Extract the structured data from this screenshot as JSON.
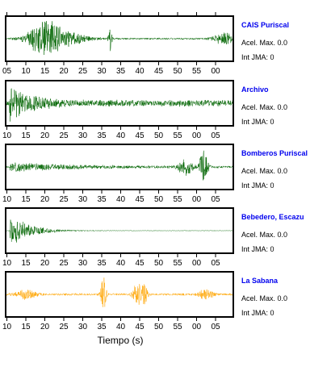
{
  "chart_data": {
    "type": "line",
    "xlabel": "Tiempo (s)",
    "ylabel": "",
    "grid": false,
    "legend": "none",
    "panels": [
      {
        "station": "CAIS Puriscal",
        "accel_label": "Acel. Max. 0.0",
        "int_label": "Int JMA: 0",
        "trace_color": "#006400",
        "x_axis_position": "top",
        "tick_labels": [
          "05",
          "10",
          "15",
          "20",
          "25",
          "30",
          "35",
          "40",
          "45",
          "50",
          "55",
          "00"
        ],
        "shape": "cais"
      },
      {
        "station": "Archivo",
        "accel_label": "Acel. Max. 0.0",
        "int_label": "Int JMA: 0",
        "trace_color": "#006400",
        "x_axis_position": "bottom",
        "tick_labels": [
          "10",
          "15",
          "20",
          "25",
          "30",
          "35",
          "40",
          "45",
          "50",
          "55",
          "00",
          "05"
        ],
        "shape": "archivo"
      },
      {
        "station": "Bomberos Puriscal",
        "accel_label": "Acel. Max. 0.0",
        "int_label": "Int JMA: 0",
        "trace_color": "#006400",
        "x_axis_position": "bottom",
        "tick_labels": [
          "10",
          "15",
          "20",
          "25",
          "30",
          "35",
          "40",
          "45",
          "50",
          "55",
          "00",
          "05"
        ],
        "shape": "bomberos"
      },
      {
        "station": "Bebedero, Escazu",
        "accel_label": "Acel. Max. 0.0",
        "int_label": "Int JMA: 0",
        "trace_color": "#006400",
        "x_axis_position": "bottom",
        "tick_labels": [
          "10",
          "15",
          "20",
          "25",
          "30",
          "35",
          "40",
          "45",
          "50",
          "55",
          "00",
          "05"
        ],
        "shape": "bebedero"
      },
      {
        "station": "La Sabana",
        "accel_label": "Acel. Max. 0.0",
        "int_label": "Int JMA: 0",
        "trace_color": "#FFA500",
        "x_axis_position": "bottom",
        "tick_labels": [
          "10",
          "15",
          "20",
          "25",
          "30",
          "35",
          "40",
          "45",
          "50",
          "55",
          "00",
          "05"
        ],
        "shape": "sabana"
      }
    ]
  },
  "colors": {
    "station_name": "#0000EE",
    "axis": "#000000",
    "text": "#000000"
  }
}
